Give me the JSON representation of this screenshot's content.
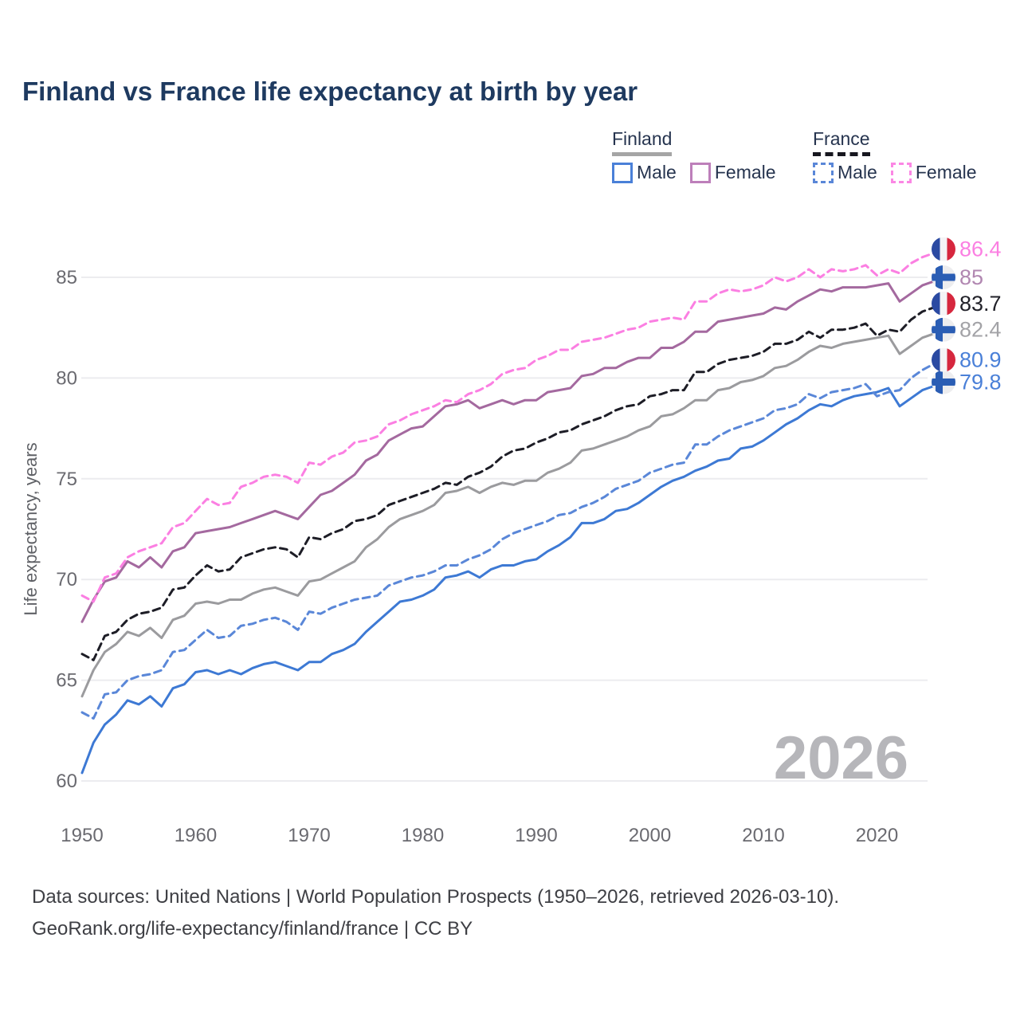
{
  "page": {
    "title": "Finland vs France life expectancy at birth by year",
    "watermark": "2026"
  },
  "legend": {
    "groups": [
      {
        "label": "Finland",
        "line_style": "solid",
        "line_color": "#a5a5a5",
        "items": [
          {
            "label": "Male",
            "color": "#4a80d8",
            "line_style": "solid"
          },
          {
            "label": "Female",
            "color": "#bd7fba",
            "line_style": "solid"
          }
        ]
      },
      {
        "label": "France",
        "line_style": "dashed",
        "line_color": "#17171f",
        "items": [
          {
            "label": "Male",
            "color": "#5a87d8",
            "line_style": "dashed"
          },
          {
            "label": "Female",
            "color": "#fb87e4",
            "line_style": "dashed"
          }
        ]
      }
    ]
  },
  "footer": {
    "line1": "Data sources: United Nations | World Population Prospects (1950–2026, retrieved 2026-03-10).",
    "line2": "GeoRank.org/life-expectancy/finland/france | CC BY"
  },
  "chart_data": {
    "type": "line",
    "title": "Finland vs France life expectancy at birth by year",
    "xlabel": "",
    "ylabel": "Life expectancy, years",
    "xlim": [
      1950,
      2026
    ],
    "ylim": [
      59,
      87.5
    ],
    "yticks": [
      60,
      65,
      70,
      75,
      80,
      85
    ],
    "xticks": [
      1950,
      1960,
      1970,
      1980,
      1990,
      2000,
      2010,
      2020
    ],
    "grid": true,
    "legend_position": "top-right",
    "watermark": "2026",
    "years_start": 1950,
    "series": [
      {
        "name": "Finland Female",
        "country": "finland",
        "sex": "female",
        "color": "#a4699f",
        "label_color": "#b187b1",
        "dash": false,
        "end_label": "85",
        "end_value": 85.0,
        "values": [
          67.9,
          69.0,
          69.9,
          70.1,
          70.9,
          70.6,
          71.1,
          70.6,
          71.4,
          71.6,
          72.3,
          72.4,
          72.5,
          72.6,
          72.8,
          73.0,
          73.2,
          73.4,
          73.2,
          73.0,
          73.6,
          74.2,
          74.4,
          74.8,
          75.2,
          75.9,
          76.2,
          76.9,
          77.2,
          77.5,
          77.6,
          78.1,
          78.6,
          78.7,
          78.9,
          78.5,
          78.7,
          78.9,
          78.7,
          78.9,
          78.9,
          79.3,
          79.4,
          79.5,
          80.1,
          80.2,
          80.5,
          80.5,
          80.8,
          81.0,
          81.0,
          81.5,
          81.5,
          81.8,
          82.3,
          82.3,
          82.8,
          82.9,
          83.0,
          83.1,
          83.2,
          83.5,
          83.4,
          83.8,
          84.1,
          84.4,
          84.3,
          84.5,
          84.5,
          84.5,
          84.6,
          84.7,
          83.8,
          84.2,
          84.6,
          84.8,
          85.0
        ]
      },
      {
        "name": "France Female",
        "country": "france",
        "sex": "female",
        "color": "#fb7fe2",
        "label_color": "#fb7fe2",
        "dash": true,
        "end_label": "86.4",
        "end_value": 86.4,
        "values": [
          69.2,
          68.9,
          70.1,
          70.3,
          71.1,
          71.4,
          71.6,
          71.8,
          72.6,
          72.8,
          73.4,
          74.0,
          73.7,
          73.8,
          74.6,
          74.8,
          75.1,
          75.2,
          75.1,
          74.8,
          75.8,
          75.7,
          76.1,
          76.3,
          76.8,
          76.9,
          77.1,
          77.7,
          77.9,
          78.2,
          78.4,
          78.6,
          78.9,
          78.8,
          79.2,
          79.4,
          79.7,
          80.2,
          80.4,
          80.5,
          80.9,
          81.1,
          81.4,
          81.4,
          81.8,
          81.9,
          82.0,
          82.2,
          82.4,
          82.5,
          82.8,
          82.9,
          83.0,
          82.9,
          83.8,
          83.8,
          84.2,
          84.4,
          84.3,
          84.4,
          84.6,
          85.0,
          84.8,
          85.0,
          85.4,
          85.0,
          85.4,
          85.3,
          85.4,
          85.6,
          85.1,
          85.4,
          85.2,
          85.7,
          86.0,
          86.2,
          86.4
        ]
      },
      {
        "name": "Finland",
        "country": "finland",
        "sex": "total",
        "color": "#9b9b9e",
        "label_color": "#a3a3a7",
        "dash": false,
        "end_label": "82.4",
        "end_value": 82.4,
        "values": [
          64.2,
          65.5,
          66.4,
          66.8,
          67.4,
          67.2,
          67.6,
          67.1,
          68.0,
          68.2,
          68.8,
          68.9,
          68.8,
          69.0,
          69.0,
          69.3,
          69.5,
          69.6,
          69.4,
          69.2,
          69.9,
          70.0,
          70.3,
          70.6,
          70.9,
          71.6,
          72.0,
          72.6,
          73.0,
          73.2,
          73.4,
          73.7,
          74.3,
          74.4,
          74.6,
          74.3,
          74.6,
          74.8,
          74.7,
          74.9,
          74.9,
          75.3,
          75.5,
          75.8,
          76.4,
          76.5,
          76.7,
          76.9,
          77.1,
          77.4,
          77.6,
          78.1,
          78.2,
          78.5,
          78.9,
          78.9,
          79.4,
          79.5,
          79.8,
          79.9,
          80.1,
          80.5,
          80.6,
          80.9,
          81.3,
          81.6,
          81.5,
          81.7,
          81.8,
          81.9,
          82.0,
          82.1,
          81.2,
          81.6,
          82.0,
          82.2,
          82.4
        ]
      },
      {
        "name": "France",
        "country": "france",
        "sex": "total",
        "color": "#1d1d26",
        "label_color": "#212129",
        "dash": true,
        "end_label": "83.7",
        "end_value": 83.7,
        "values": [
          66.3,
          66.0,
          67.2,
          67.4,
          68.0,
          68.3,
          68.4,
          68.6,
          69.5,
          69.6,
          70.2,
          70.7,
          70.4,
          70.5,
          71.1,
          71.3,
          71.5,
          71.6,
          71.5,
          71.1,
          72.1,
          72.0,
          72.3,
          72.5,
          72.9,
          73.0,
          73.2,
          73.7,
          73.9,
          74.1,
          74.3,
          74.5,
          74.8,
          74.7,
          75.1,
          75.3,
          75.6,
          76.1,
          76.4,
          76.5,
          76.8,
          77.0,
          77.3,
          77.4,
          77.7,
          77.9,
          78.1,
          78.4,
          78.6,
          78.7,
          79.1,
          79.2,
          79.4,
          79.4,
          80.3,
          80.3,
          80.7,
          80.9,
          81.0,
          81.1,
          81.3,
          81.7,
          81.7,
          81.9,
          82.3,
          82.0,
          82.4,
          82.4,
          82.5,
          82.7,
          82.1,
          82.4,
          82.3,
          82.9,
          83.3,
          83.5,
          83.7
        ]
      },
      {
        "name": "Finland Male",
        "country": "finland",
        "sex": "male",
        "color": "#3d79d4",
        "label_color": "#4a80d8",
        "dash": false,
        "end_label": "79.8",
        "end_value": 79.8,
        "values": [
          60.4,
          61.9,
          62.8,
          63.3,
          64.0,
          63.8,
          64.2,
          63.7,
          64.6,
          64.8,
          65.4,
          65.5,
          65.3,
          65.5,
          65.3,
          65.6,
          65.8,
          65.9,
          65.7,
          65.5,
          65.9,
          65.9,
          66.3,
          66.5,
          66.8,
          67.4,
          67.9,
          68.4,
          68.9,
          69.0,
          69.2,
          69.5,
          70.1,
          70.2,
          70.4,
          70.1,
          70.5,
          70.7,
          70.7,
          70.9,
          71.0,
          71.4,
          71.7,
          72.1,
          72.8,
          72.8,
          73.0,
          73.4,
          73.5,
          73.8,
          74.2,
          74.6,
          74.9,
          75.1,
          75.4,
          75.6,
          75.9,
          76.0,
          76.5,
          76.6,
          76.9,
          77.3,
          77.7,
          78.0,
          78.4,
          78.7,
          78.6,
          78.9,
          79.1,
          79.2,
          79.3,
          79.5,
          78.6,
          79.0,
          79.4,
          79.6,
          79.8
        ]
      },
      {
        "name": "France Male",
        "country": "france",
        "sex": "male",
        "color": "#5a87d8",
        "label_color": "#4a80d8",
        "dash": true,
        "end_label": "80.9",
        "end_value": 80.9,
        "values": [
          63.4,
          63.1,
          64.3,
          64.4,
          65.0,
          65.2,
          65.3,
          65.5,
          66.4,
          66.5,
          67.0,
          67.5,
          67.1,
          67.2,
          67.7,
          67.8,
          68.0,
          68.1,
          67.9,
          67.5,
          68.4,
          68.3,
          68.6,
          68.8,
          69.0,
          69.1,
          69.2,
          69.7,
          69.9,
          70.1,
          70.2,
          70.4,
          70.7,
          70.7,
          71.0,
          71.2,
          71.5,
          72.0,
          72.3,
          72.5,
          72.7,
          72.9,
          73.2,
          73.3,
          73.6,
          73.8,
          74.1,
          74.5,
          74.7,
          74.9,
          75.3,
          75.5,
          75.7,
          75.8,
          76.7,
          76.7,
          77.1,
          77.4,
          77.6,
          77.8,
          78.0,
          78.4,
          78.5,
          78.7,
          79.2,
          79.0,
          79.3,
          79.4,
          79.5,
          79.7,
          79.1,
          79.3,
          79.4,
          80.0,
          80.4,
          80.7,
          80.9
        ]
      }
    ],
    "colors": {
      "finland_male": "#3d79d4",
      "france_male": "#5a87d8",
      "finland_female": "#a4699f",
      "france_female": "#fb7fe2",
      "finland_total": "#9b9b9e",
      "france_total": "#1d1d26",
      "grid": "#ececef",
      "axis_text": "#6a6a70",
      "title_text": "#1e3a60",
      "watermark": "#b6b6ba",
      "flag_finland_cross": "#2a5db4",
      "flag_france_blue": "#2b4aa2",
      "flag_france_red": "#d6273e"
    }
  }
}
